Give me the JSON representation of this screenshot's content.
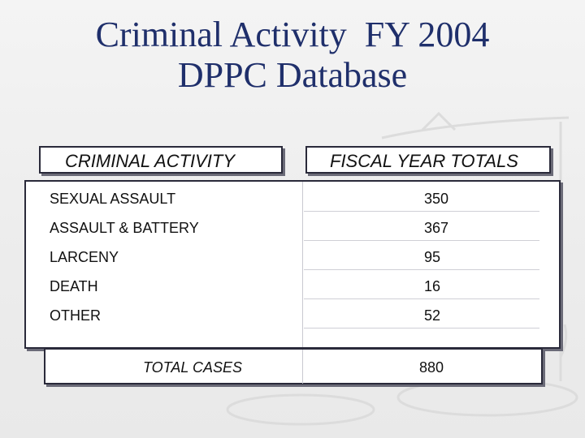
{
  "slide": {
    "title_line1": "Criminal Activity  FY 2004",
    "title_line2": "DPPC Database"
  },
  "table": {
    "header_activity": "CRIMINAL ACTIVITY",
    "header_totals": "FISCAL YEAR TOTALS",
    "rows": [
      {
        "category": "SEXUAL ASSAULT",
        "total": "350"
      },
      {
        "category": "ASSAULT & BATTERY",
        "total": "367"
      },
      {
        "category": "LARCENY",
        "total": "95"
      },
      {
        "category": "DEATH",
        "total": "16"
      },
      {
        "category": "OTHER",
        "total": "52"
      }
    ],
    "total_label": "TOTAL CASES",
    "total_value": "880"
  },
  "colors": {
    "title": "#1f2f6b",
    "background": "#efefef",
    "border": "#2a2a3a"
  },
  "icons": {
    "watermark": "scales-of-justice-icon"
  }
}
